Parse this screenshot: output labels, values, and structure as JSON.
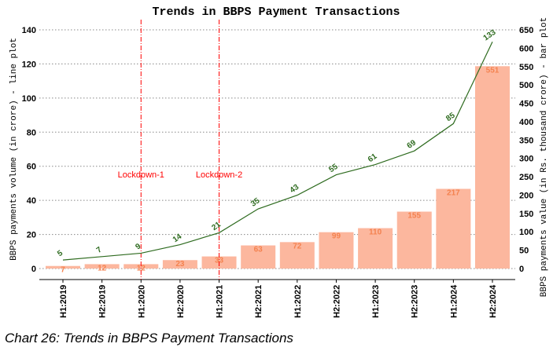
{
  "chart_data": {
    "type": "bar+line",
    "title": "Trends in BBPS Payment Transactions",
    "caption": "Chart 26: Trends in BBPS Payment Transactions",
    "ylabel_left": "BBPS payments volume (in crore) - line plot",
    "ylabel_right": "BBPS payments value (in Rs. thousand crore) - bar plot",
    "categories": [
      "H1:2019",
      "H2:2019",
      "H1:2020",
      "H2:2020",
      "H1:2021",
      "H2:2021",
      "H1:2022",
      "H2:2022",
      "H1:2023",
      "H2:2023",
      "H1:2024",
      "H2:2024"
    ],
    "series": [
      {
        "kind": "line",
        "axis": "left",
        "color": "#2e6b1f",
        "values": [
          5,
          7,
          9,
          14,
          21,
          35,
          43,
          55,
          61,
          69,
          85,
          133
        ]
      },
      {
        "kind": "bar",
        "axis": "right",
        "color": "#fcb79e",
        "label_color": "#f4824f",
        "values": [
          7,
          12,
          12,
          23,
          33,
          63,
          72,
          99,
          110,
          155,
          217,
          551
        ]
      }
    ],
    "ylim_left": [
      0,
      140
    ],
    "yticks_left": [
      0,
      20,
      40,
      60,
      80,
      100,
      120,
      140
    ],
    "ylim_right": [
      0,
      650
    ],
    "yticks_right": [
      0,
      50,
      100,
      150,
      200,
      250,
      300,
      350,
      400,
      450,
      500,
      550,
      600,
      650
    ],
    "grid": "horizontal dotted",
    "annotations": [
      {
        "text": "Lockdown-1",
        "at": "H1:2020",
        "color": "#ff0000"
      },
      {
        "text": "Lockdown-2",
        "at": "H1:2021",
        "color": "#ff0000"
      }
    ]
  }
}
